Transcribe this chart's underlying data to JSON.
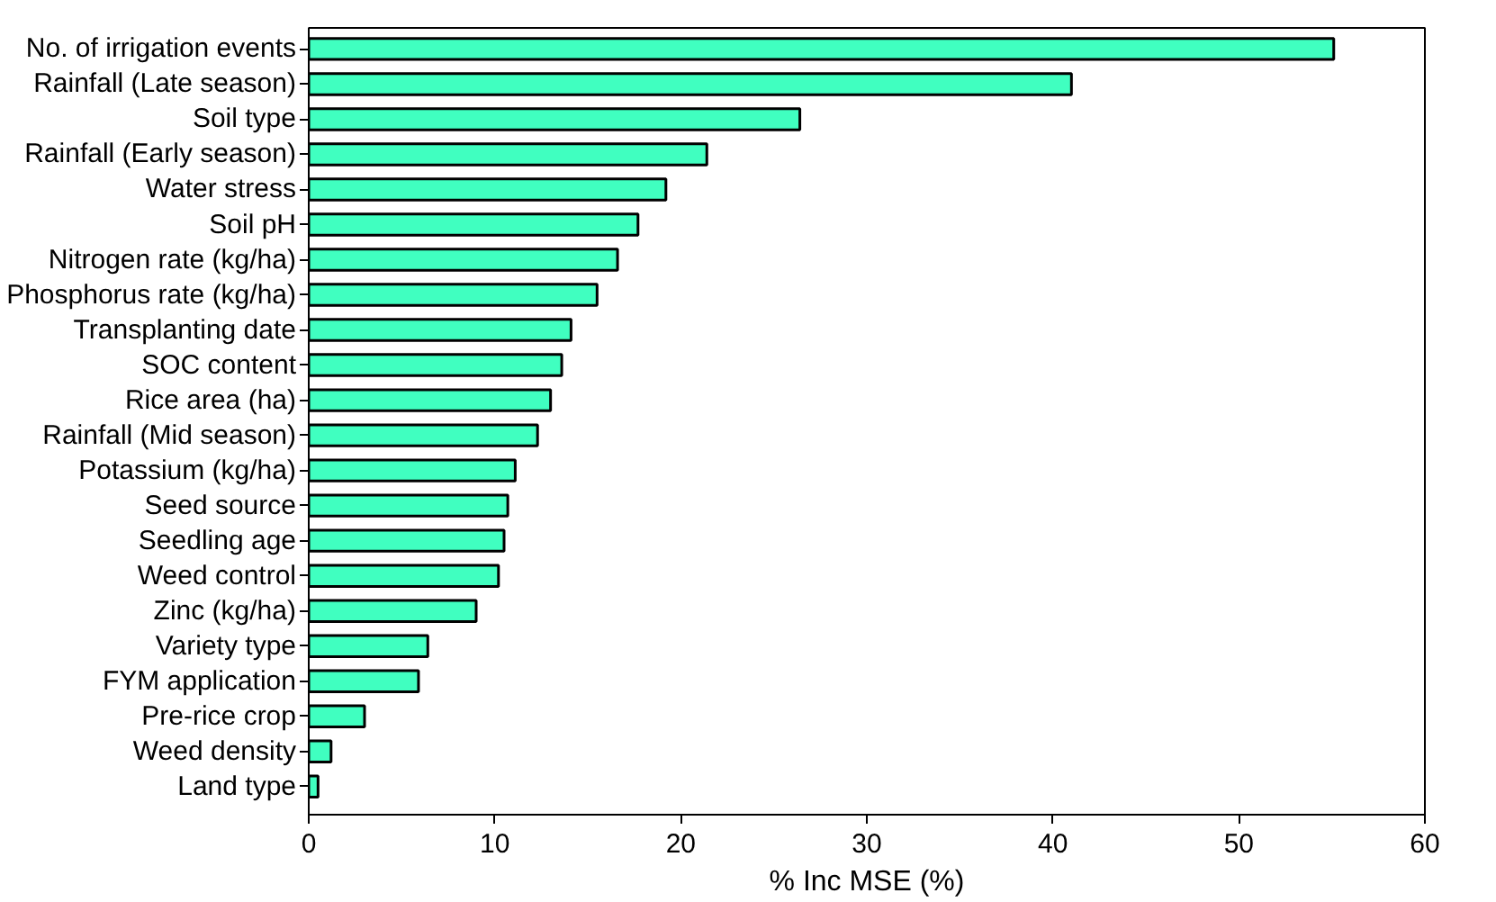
{
  "chart_data": {
    "type": "bar",
    "orientation": "horizontal",
    "xlabel": "% Inc MSE (%)",
    "categories": [
      "No. of irrigation events",
      "Rainfall (Late season)",
      "Soil type",
      "Rainfall (Early season)",
      "Water stress",
      "Soil pH",
      "Nitrogen rate (kg/ha)",
      "Phosphorus rate (kg/ha)",
      "Transplanting date",
      "SOC content",
      "Rice area (ha)",
      "Rainfall (Mid season)",
      "Potassium (kg/ha)",
      "Seed source",
      "Seedling age",
      "Weed control",
      "Zinc (kg/ha)",
      "Variety type",
      "FYM application",
      "Pre-rice crop",
      "Weed density",
      "Land type"
    ],
    "values": [
      55.1,
      41.0,
      26.4,
      21.4,
      19.2,
      17.7,
      16.6,
      15.5,
      14.1,
      13.6,
      13.0,
      12.3,
      11.1,
      10.7,
      10.5,
      10.2,
      9.0,
      6.4,
      5.9,
      3.0,
      1.2,
      0.5
    ],
    "color": "#40ffc0",
    "xlim": [
      0,
      60
    ],
    "xticks": [
      0,
      10,
      20,
      30,
      40,
      50,
      60
    ],
    "grid": false
  }
}
